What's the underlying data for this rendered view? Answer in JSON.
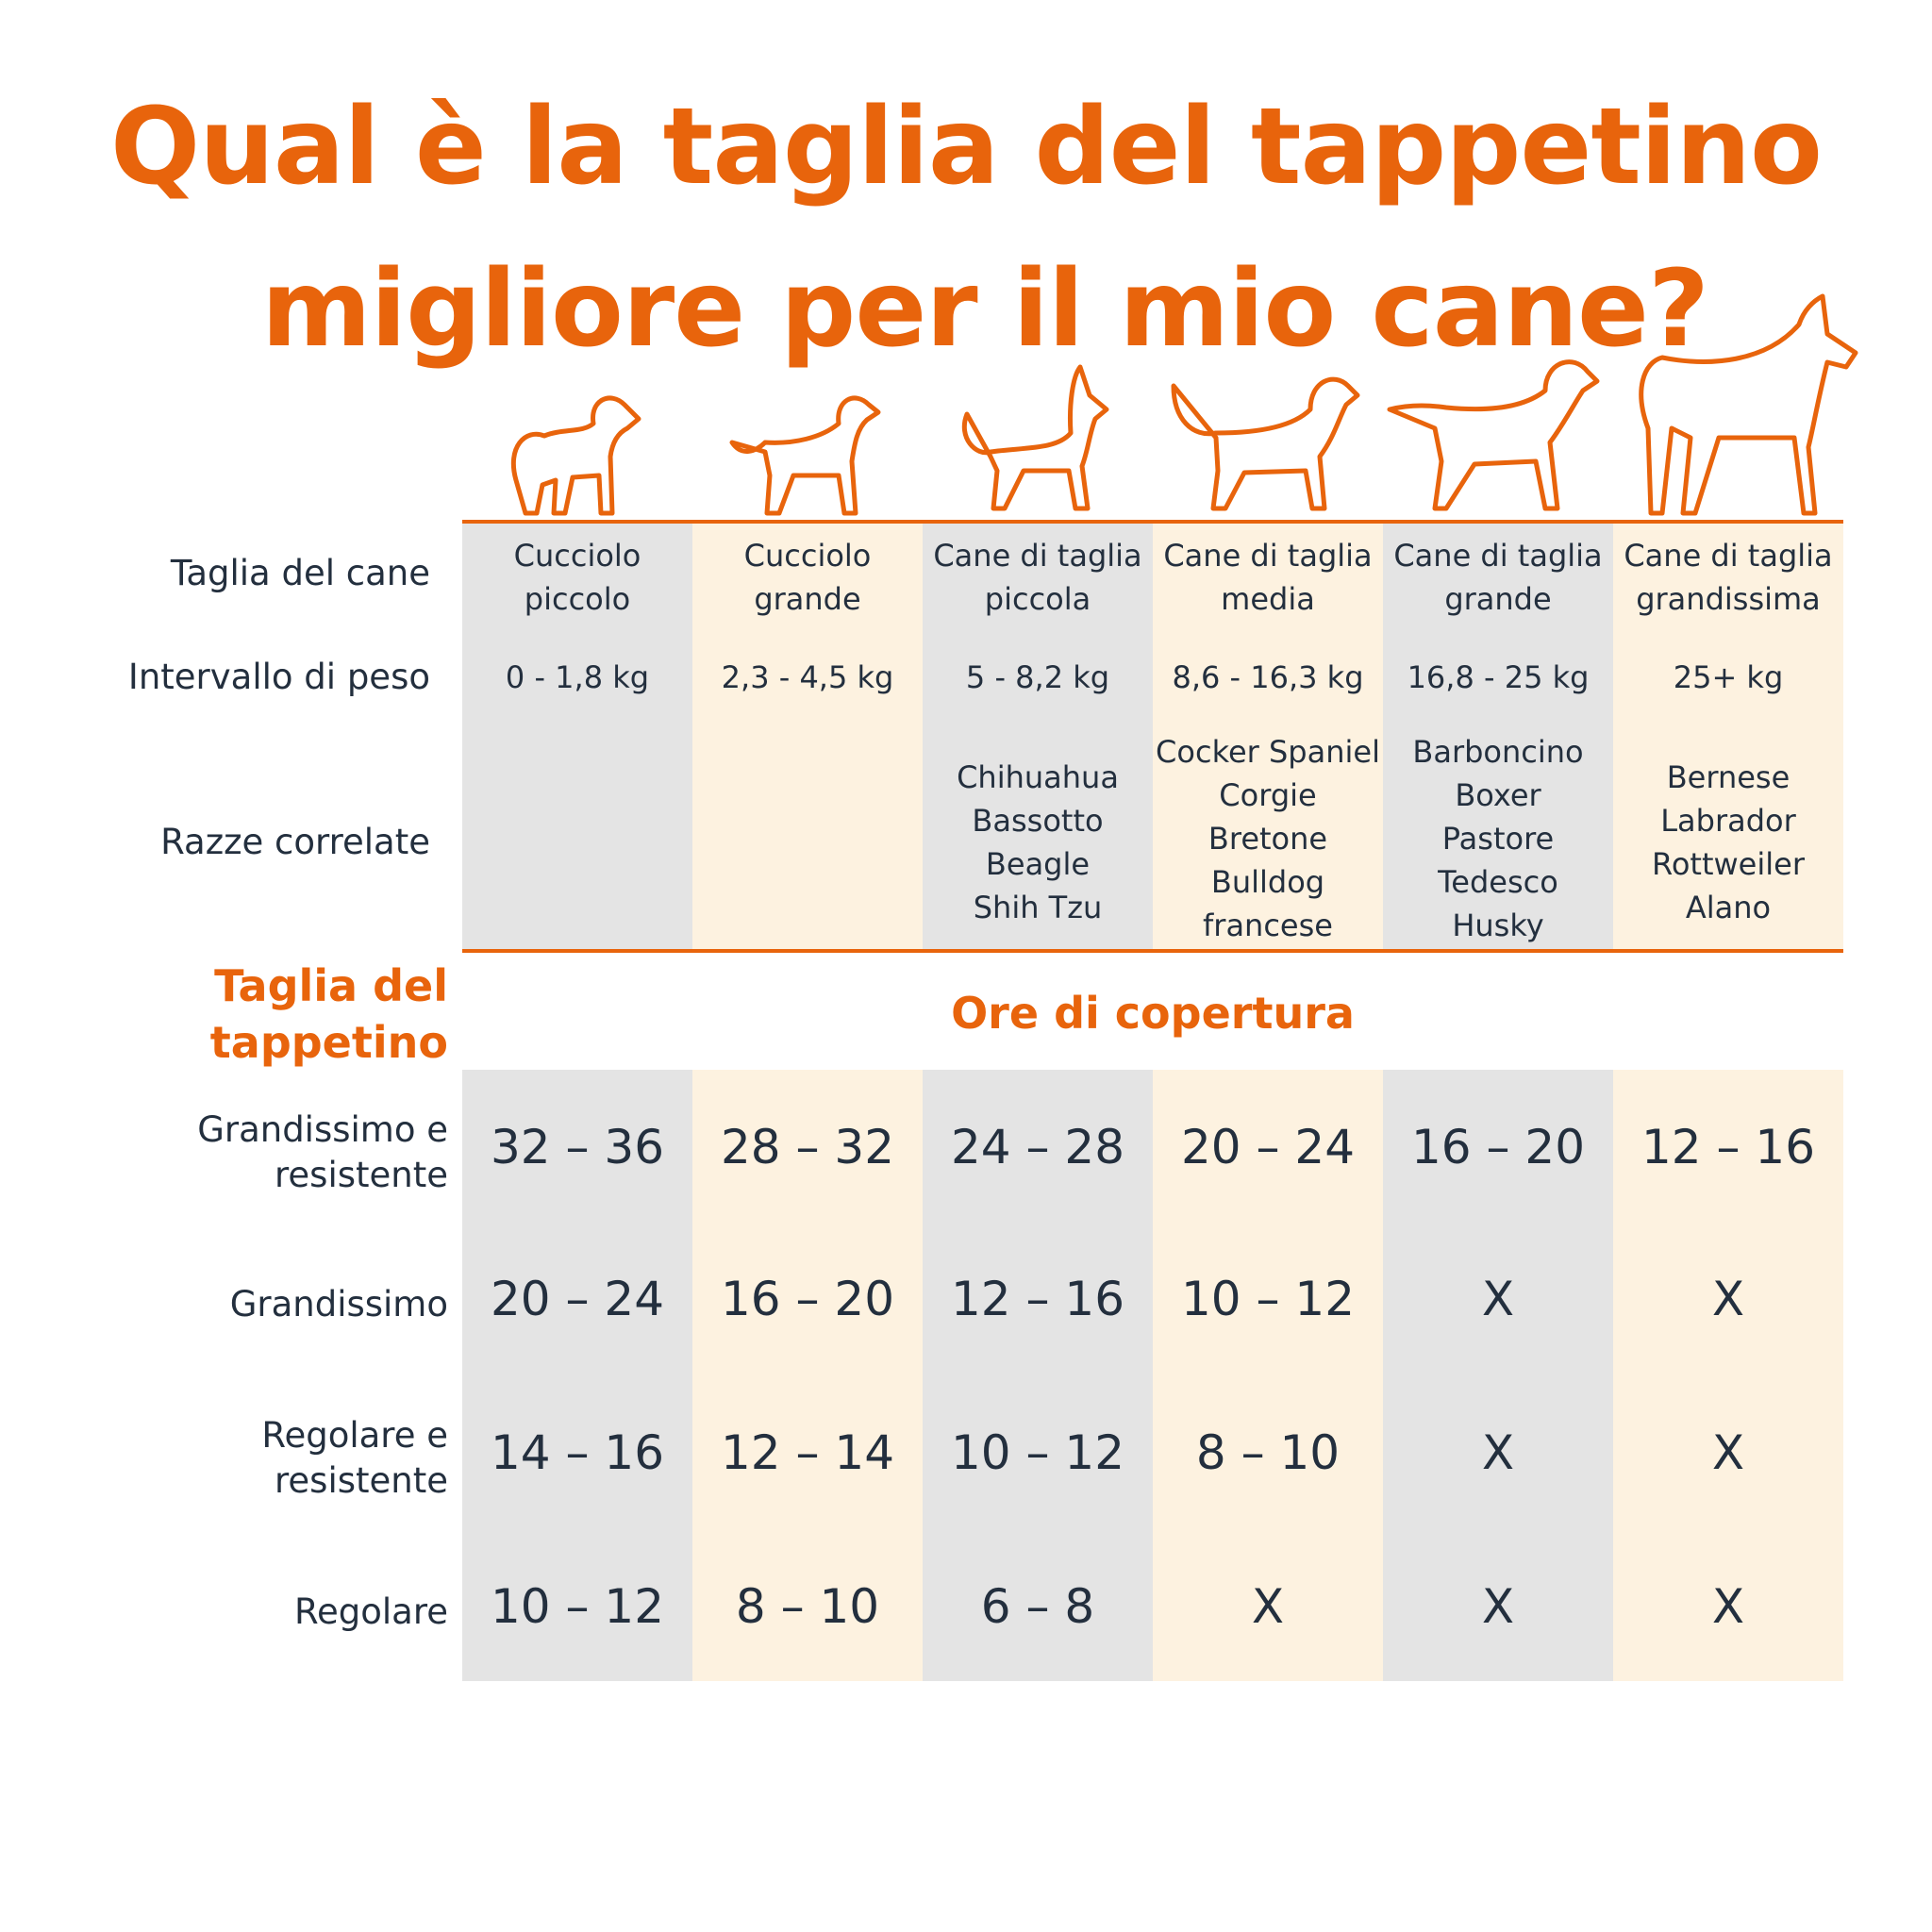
{
  "title": {
    "line1": "Qual è la taglia del tappetino",
    "line2": "migliore per il mio cane?"
  },
  "colors": {
    "accent": "#e8640c",
    "grey": "#e4e4e4",
    "cream": "#fdf2e0",
    "text": "#232f3e"
  },
  "row_labels": {
    "size": "Taglia del cane",
    "weight": "Intervallo di peso",
    "breeds": "Razze correlate"
  },
  "columns": [
    {
      "size": [
        "Cucciolo",
        "piccolo"
      ],
      "weight": "0 - 1,8 kg",
      "breeds": [],
      "icon": "puppy-small-icon"
    },
    {
      "size": [
        "Cucciolo",
        "grande"
      ],
      "weight": "2,3 - 4,5 kg",
      "breeds": [],
      "icon": "puppy-large-icon"
    },
    {
      "size": [
        "Cane di taglia",
        "piccola"
      ],
      "weight": "5 - 8,2 kg",
      "breeds": [
        "Chihuahua",
        "Bassotto",
        "Beagle",
        "Shih Tzu"
      ],
      "icon": "small-dog-icon"
    },
    {
      "size": [
        "Cane di taglia",
        "media"
      ],
      "weight": "8,6 - 16,3 kg",
      "breeds": [
        "Cocker Spaniel",
        "Corgie",
        "Bretone",
        "Bulldog",
        "francese"
      ],
      "icon": "medium-dog-icon"
    },
    {
      "size": [
        "Cane di taglia",
        "grande"
      ],
      "weight": "16,8 - 25 kg",
      "breeds": [
        "Barboncino",
        "Boxer",
        "Pastore",
        "Tedesco",
        "Husky"
      ],
      "icon": "large-dog-icon"
    },
    {
      "size": [
        "Cane di taglia",
        "grandissima"
      ],
      "weight": "25+ kg",
      "breeds": [
        "Bernese",
        "Labrador",
        "Rottweiler",
        "Alano"
      ],
      "icon": "giant-dog-icon"
    }
  ],
  "mat_header": {
    "line1": "Taglia del",
    "line2": "tappetino"
  },
  "coverage_header": "Ore di copertura",
  "mats": [
    {
      "label": [
        "Grandissimo e",
        "resistente"
      ],
      "values": [
        "32 – 36",
        "28 – 32",
        "24 – 28",
        "20 – 24",
        "16 – 20",
        "12 – 16"
      ]
    },
    {
      "label": [
        "Grandissimo"
      ],
      "values": [
        "20 – 24",
        "16 – 20",
        "12 – 16",
        "10 – 12",
        "X",
        "X"
      ]
    },
    {
      "label": [
        "Regolare e",
        "resistente"
      ],
      "values": [
        "14 – 16",
        "12 – 14",
        "10 – 12",
        "8 – 10",
        "X",
        "X"
      ]
    },
    {
      "label": [
        "Regolare"
      ],
      "values": [
        "10 – 12",
        "8 – 10",
        "6 – 8",
        "X",
        "X",
        "X"
      ]
    }
  ]
}
